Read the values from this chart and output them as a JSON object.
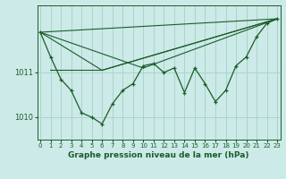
{
  "title": "Graphe pression niveau de la mer (hPa)",
  "bg_color": "#cceae7",
  "grid_color": "#aad4cc",
  "line_color": "#1a5c2a",
  "x_ticks": [
    0,
    1,
    2,
    3,
    4,
    5,
    6,
    7,
    8,
    9,
    10,
    11,
    12,
    13,
    14,
    15,
    16,
    17,
    18,
    19,
    20,
    21,
    22,
    23
  ],
  "y_ticks": [
    1010,
    1011
  ],
  "ylim": [
    1009.5,
    1012.5
  ],
  "xlim": [
    -0.3,
    23.3
  ],
  "main_series": [
    1011.9,
    1011.35,
    1010.85,
    1010.6,
    1010.1,
    1010.0,
    1009.85,
    1010.3,
    1010.6,
    1010.75,
    1011.15,
    1011.2,
    1011.0,
    1011.1,
    1010.55,
    1011.1,
    1010.75,
    1010.35,
    1010.6,
    1011.15,
    1011.35,
    1011.8,
    1012.1,
    1012.2
  ],
  "trend1_x": [
    0,
    23
  ],
  "trend1_y": [
    1011.9,
    1012.2
  ],
  "trend2_x": [
    0,
    10,
    23
  ],
  "trend2_y": [
    1011.9,
    1011.1,
    1012.2
  ],
  "trend3_x": [
    0,
    6,
    23
  ],
  "trend3_y": [
    1011.9,
    1011.05,
    1012.2
  ],
  "trend4_x": [
    1,
    6,
    23
  ],
  "trend4_y": [
    1011.05,
    1011.05,
    1012.2
  ]
}
